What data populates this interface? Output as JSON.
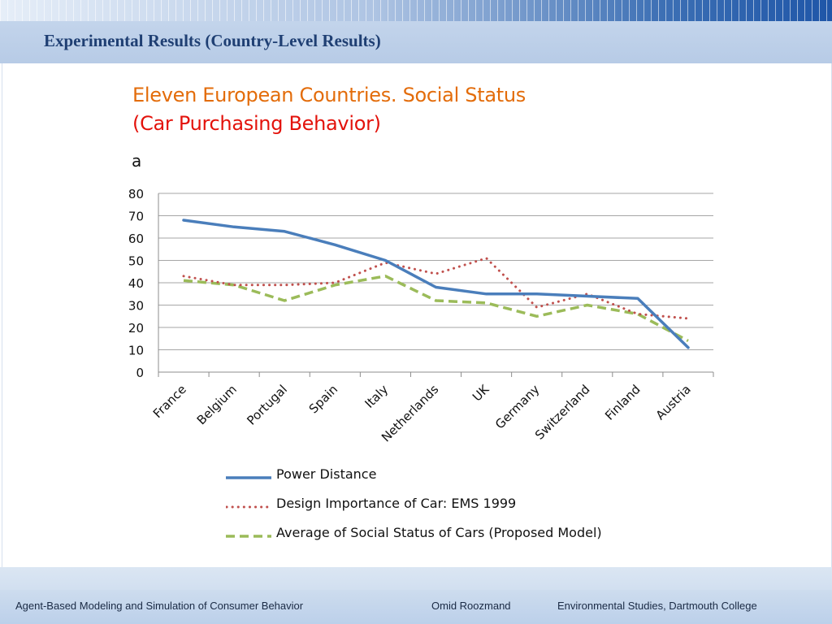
{
  "slide": {
    "title": "Experimental Results (Country-Level Results)",
    "heading_line1": "Eleven European Countries. Social Status",
    "heading_line2": "(Car Purchasing Behavior)",
    "panel_label": "a"
  },
  "footer": {
    "left": "Agent-Based Modeling and Simulation of Consumer Behavior",
    "center": "Omid Roozmand",
    "right": "Environmental Studies, Dartmouth College"
  },
  "colors": {
    "title": "#1f3f73",
    "heading1": "#e36c0a",
    "heading2": "#e3120b",
    "power_distance": "#4a7ebb",
    "design_importance": "#c0504d",
    "social_status": "#9bbb59"
  },
  "chart_data": {
    "type": "line",
    "categories": [
      "France",
      "Belgium",
      "Portugal",
      "Spain",
      "Italy",
      "Netherlands",
      "UK",
      "Germany",
      "Switzerland",
      "Finland",
      "Austria"
    ],
    "ylim": [
      0,
      80
    ],
    "yticks": [
      0,
      10,
      20,
      30,
      40,
      50,
      60,
      70,
      80
    ],
    "grid": true,
    "legend": "bottom",
    "series": [
      {
        "name": "Power Distance",
        "style": "solid",
        "color": "#4a7ebb",
        "values": [
          68,
          65,
          63,
          57,
          50,
          38,
          35,
          35,
          34,
          33,
          11
        ]
      },
      {
        "name": "Design Importance of Car: EMS 1999",
        "style": "dotted",
        "color": "#c0504d",
        "values": [
          43,
          39,
          39,
          40,
          49,
          44,
          51,
          29,
          35,
          26,
          24
        ]
      },
      {
        "name": "Average of Social Status of Cars (Proposed Model)",
        "style": "dashed",
        "color": "#9bbb59",
        "values": [
          41,
          39,
          32,
          39,
          43,
          32,
          31,
          25,
          30,
          26,
          14
        ]
      }
    ]
  }
}
